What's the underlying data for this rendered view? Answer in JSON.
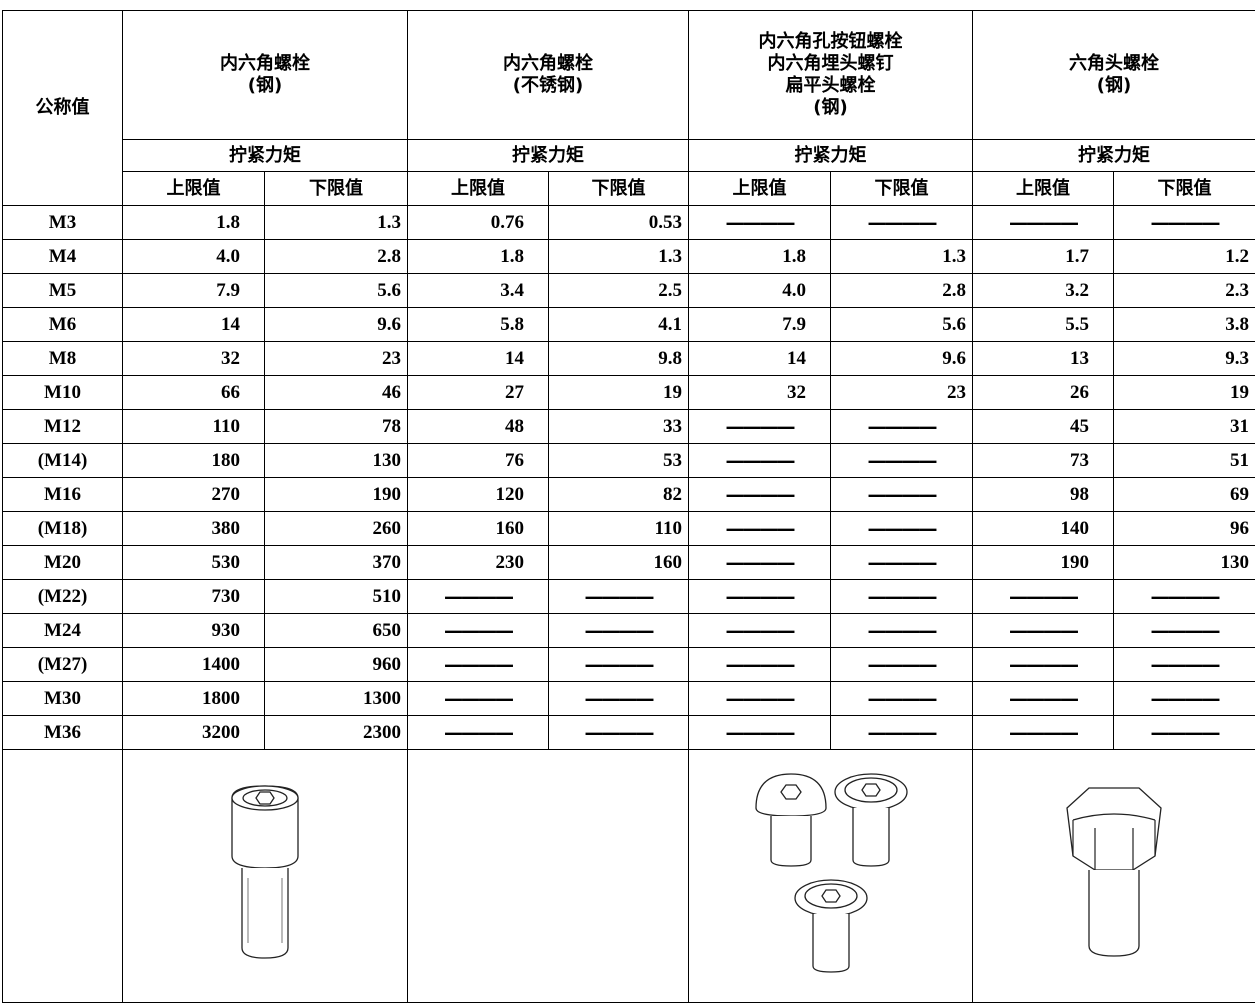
{
  "table": {
    "corner": "公称值",
    "groups": [
      {
        "lines": [
          "内六角螺栓",
          "(钢)"
        ]
      },
      {
        "lines": [
          "内六角螺栓",
          "(不锈钢)"
        ]
      },
      {
        "lines": [
          "内六角孔按钮螺栓",
          "内六角埋头螺钉",
          "扁平头螺栓",
          "(钢)"
        ]
      },
      {
        "lines": [
          "六角头螺栓",
          "(钢)"
        ]
      }
    ],
    "torque": [
      "拧紧力矩",
      "拧紧力矩",
      "拧紧力矩",
      "拧紧力矩"
    ],
    "limits": [
      "上限值",
      "下限值",
      "上限值",
      "下限值",
      "上限值",
      "下限值",
      "上限值",
      "下限值"
    ],
    "rows": [
      [
        "M3",
        "1.8",
        "1.3",
        "0.76",
        "0.53",
        "————",
        "————",
        "————",
        "————"
      ],
      [
        "M4",
        "4.0",
        "2.8",
        "1.8",
        "1.3",
        "1.8",
        "1.3",
        "1.7",
        "1.2"
      ],
      [
        "M5",
        "7.9",
        "5.6",
        "3.4",
        "2.5",
        "4.0",
        "2.8",
        "3.2",
        "2.3"
      ],
      [
        "M6",
        "14",
        "9.6",
        "5.8",
        "4.1",
        "7.9",
        "5.6",
        "5.5",
        "3.8"
      ],
      [
        "M8",
        "32",
        "23",
        "14",
        "9.8",
        "14",
        "9.6",
        "13",
        "9.3"
      ],
      [
        "M10",
        "66",
        "46",
        "27",
        "19",
        "32",
        "23",
        "26",
        "19"
      ],
      [
        "M12",
        "110",
        "78",
        "48",
        "33",
        "————",
        "————",
        "45",
        "31"
      ],
      [
        "(M14)",
        "180",
        "130",
        "76",
        "53",
        "————",
        "————",
        "73",
        "51"
      ],
      [
        "M16",
        "270",
        "190",
        "120",
        "82",
        "————",
        "————",
        "98",
        "69"
      ],
      [
        "(M18)",
        "380",
        "260",
        "160",
        "110",
        "————",
        "————",
        "140",
        "96"
      ],
      [
        "M20",
        "530",
        "370",
        "230",
        "160",
        "————",
        "————",
        "190",
        "130"
      ],
      [
        "(M22)",
        "730",
        "510",
        "————",
        "————",
        "————",
        "————",
        "————",
        "————"
      ],
      [
        "M24",
        "930",
        "650",
        "————",
        "————",
        "————",
        "————",
        "————",
        "————"
      ],
      [
        "(M27)",
        "1400",
        "960",
        "————",
        "————",
        "————",
        "————",
        "————",
        "————"
      ],
      [
        "M30",
        "1800",
        "1300",
        "————",
        "————",
        "————",
        "————",
        "————",
        "————"
      ],
      [
        "M36",
        "3200",
        "2300",
        "————",
        "————",
        "————",
        "————",
        "————",
        "————"
      ]
    ]
  }
}
